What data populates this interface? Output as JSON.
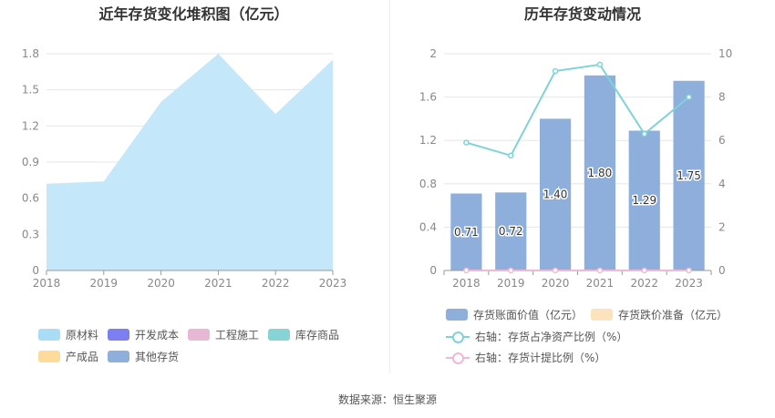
{
  "charts": [
    {
      "title": "近年存货变化堆积图（亿元）",
      "legend": [
        "原材料",
        "开发成本",
        "工程施工",
        "库存商品",
        "产成品",
        "其他存货"
      ]
    },
    {
      "title": "历年存货变动情况",
      "legend": [
        "存货账面价值（亿元）",
        "存货跌价准备（亿元）",
        "右轴：存货占净资产比例（%）",
        "右轴：存货计提比例（%）"
      ]
    }
  ],
  "colors": {
    "area_fill": "#c4e8fa",
    "bar": "#8eaedb",
    "line_ratio": "#7fd3d8",
    "line_provision": "#f0b8d8",
    "legend_swatches": [
      "#a8dcf7",
      "#7b7fef",
      "#e8b7d4",
      "#87d4d7",
      "#fddb9a",
      "#8eaedb"
    ],
    "legend_swatches_right": [
      "#8eaedb",
      "#fde3bd",
      "#7fd3d8",
      "#f0b8d8"
    ]
  },
  "chart_data": [
    {
      "type": "area",
      "title": "近年存货变化堆积图（亿元）",
      "x": [
        "2018",
        "2019",
        "2020",
        "2021",
        "2022",
        "2023"
      ],
      "series": [
        {
          "name": "原材料",
          "values": [
            0.72,
            0.74,
            1.4,
            1.8,
            1.3,
            1.75
          ]
        },
        {
          "name": "开发成本",
          "values": [
            0,
            0,
            0,
            0,
            0,
            0
          ]
        },
        {
          "name": "工程施工",
          "values": [
            0,
            0,
            0,
            0,
            0,
            0
          ]
        },
        {
          "name": "库存商品",
          "values": [
            0,
            0,
            0,
            0,
            0,
            0
          ]
        },
        {
          "name": "产成品",
          "values": [
            0,
            0,
            0,
            0,
            0,
            0
          ]
        },
        {
          "name": "其他存货",
          "values": [
            0,
            0,
            0,
            0,
            0,
            0
          ]
        }
      ],
      "ylim": [
        0,
        1.8
      ],
      "yticks": [
        "0",
        "0.3",
        "0.6",
        "0.9",
        "1.2",
        "1.5",
        "1.8"
      ],
      "grid": true,
      "legend_position": "bottom"
    },
    {
      "type": "bar",
      "title": "历年存货变动情况",
      "categories": [
        "2018",
        "2019",
        "2020",
        "2021",
        "2022",
        "2023"
      ],
      "series": [
        {
          "name": "存货账面价值（亿元）",
          "type": "bar",
          "axis": "left",
          "values": [
            0.71,
            0.72,
            1.4,
            1.8,
            1.29,
            1.75
          ],
          "labels": [
            "0.71",
            "0.72",
            "1.40",
            "1.80",
            "1.29",
            "1.75"
          ]
        },
        {
          "name": "存货跌价准备（亿元）",
          "type": "bar",
          "axis": "left",
          "values": [
            0,
            0,
            0,
            0,
            0,
            0
          ]
        },
        {
          "name": "右轴：存货占净资产比例（%）",
          "type": "line",
          "axis": "right",
          "values": [
            5.9,
            5.3,
            9.2,
            9.5,
            6.3,
            8.0
          ]
        },
        {
          "name": "右轴：存货计提比例（%）",
          "type": "line",
          "axis": "right",
          "values": [
            0,
            0,
            0,
            0,
            0,
            0
          ]
        }
      ],
      "ylim_left": [
        0,
        2
      ],
      "yticks_left": [
        "0",
        "0.4",
        "0.8",
        "1.2",
        "1.6",
        "2"
      ],
      "ylim_right": [
        0,
        10
      ],
      "yticks_right": [
        "0",
        "2",
        "4",
        "6",
        "8",
        "10"
      ],
      "grid": true,
      "legend_position": "bottom"
    }
  ],
  "footer": {
    "source": "数据来源：恒生聚源"
  }
}
